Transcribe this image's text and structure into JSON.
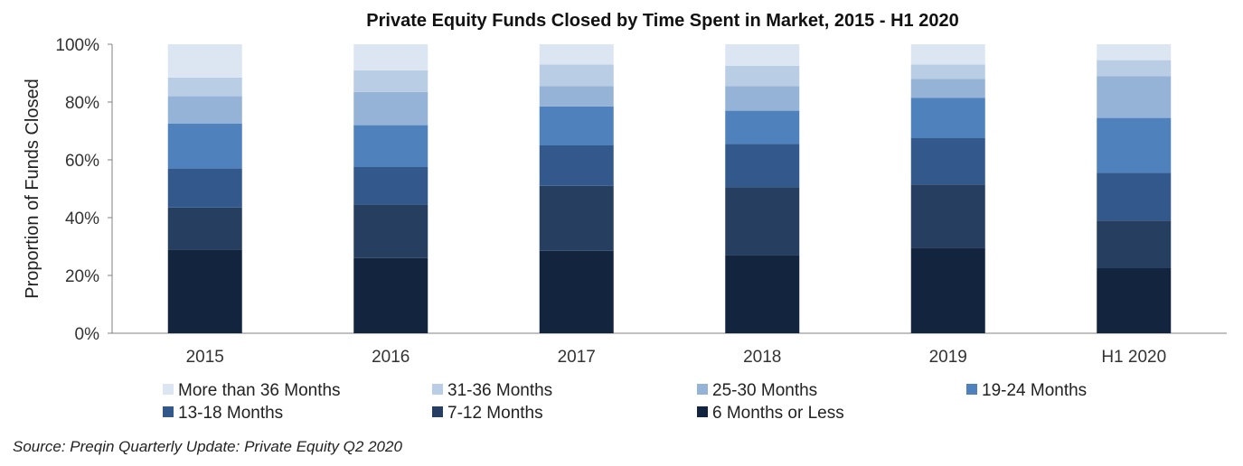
{
  "source": "Source: Preqin Quarterly Update: Private Equity Q2 2020",
  "chart_data": {
    "type": "bar",
    "stacked": true,
    "title": "Private Equity Funds Closed by Time Spent in Market, 2015 - H1 2020",
    "xlabel": "",
    "ylabel": "Proportion of Funds Closed",
    "ylim": [
      0,
      100
    ],
    "yticks": [
      "0%",
      "20%",
      "40%",
      "60%",
      "80%",
      "100%"
    ],
    "grid": false,
    "legend_position": "bottom",
    "categories": [
      "2015",
      "2016",
      "2017",
      "2018",
      "2019",
      "H1 2020"
    ],
    "series": [
      {
        "name": "6 Months or Less",
        "color": "#13243f",
        "values": [
          29.0,
          26.0,
          28.5,
          27.0,
          29.5,
          22.5
        ]
      },
      {
        "name": "7-12 Months",
        "color": "#263f60",
        "values": [
          14.5,
          18.5,
          22.5,
          23.5,
          22.0,
          16.5
        ]
      },
      {
        "name": "13-18 Months",
        "color": "#33598c",
        "values": [
          13.5,
          13.0,
          14.0,
          15.0,
          16.0,
          16.5
        ]
      },
      {
        "name": "19-24 Months",
        "color": "#4f81bd",
        "values": [
          15.5,
          14.5,
          13.5,
          11.5,
          14.0,
          19.0
        ]
      },
      {
        "name": "25-30 Months",
        "color": "#95b3d7",
        "values": [
          9.5,
          11.5,
          7.0,
          8.5,
          6.5,
          14.5
        ]
      },
      {
        "name": "31-36 Months",
        "color": "#b9cde5",
        "values": [
          6.5,
          7.5,
          7.5,
          7.0,
          5.0,
          5.5
        ]
      },
      {
        "name": "More than 36 Months",
        "color": "#dce6f2",
        "values": [
          11.5,
          9.0,
          7.0,
          7.5,
          7.0,
          5.5
        ]
      }
    ],
    "legend_order": [
      "More than 36 Months",
      "31-36 Months",
      "25-30 Months",
      "19-24 Months",
      "13-18 Months",
      "7-12 Months",
      "6 Months or Less"
    ]
  }
}
